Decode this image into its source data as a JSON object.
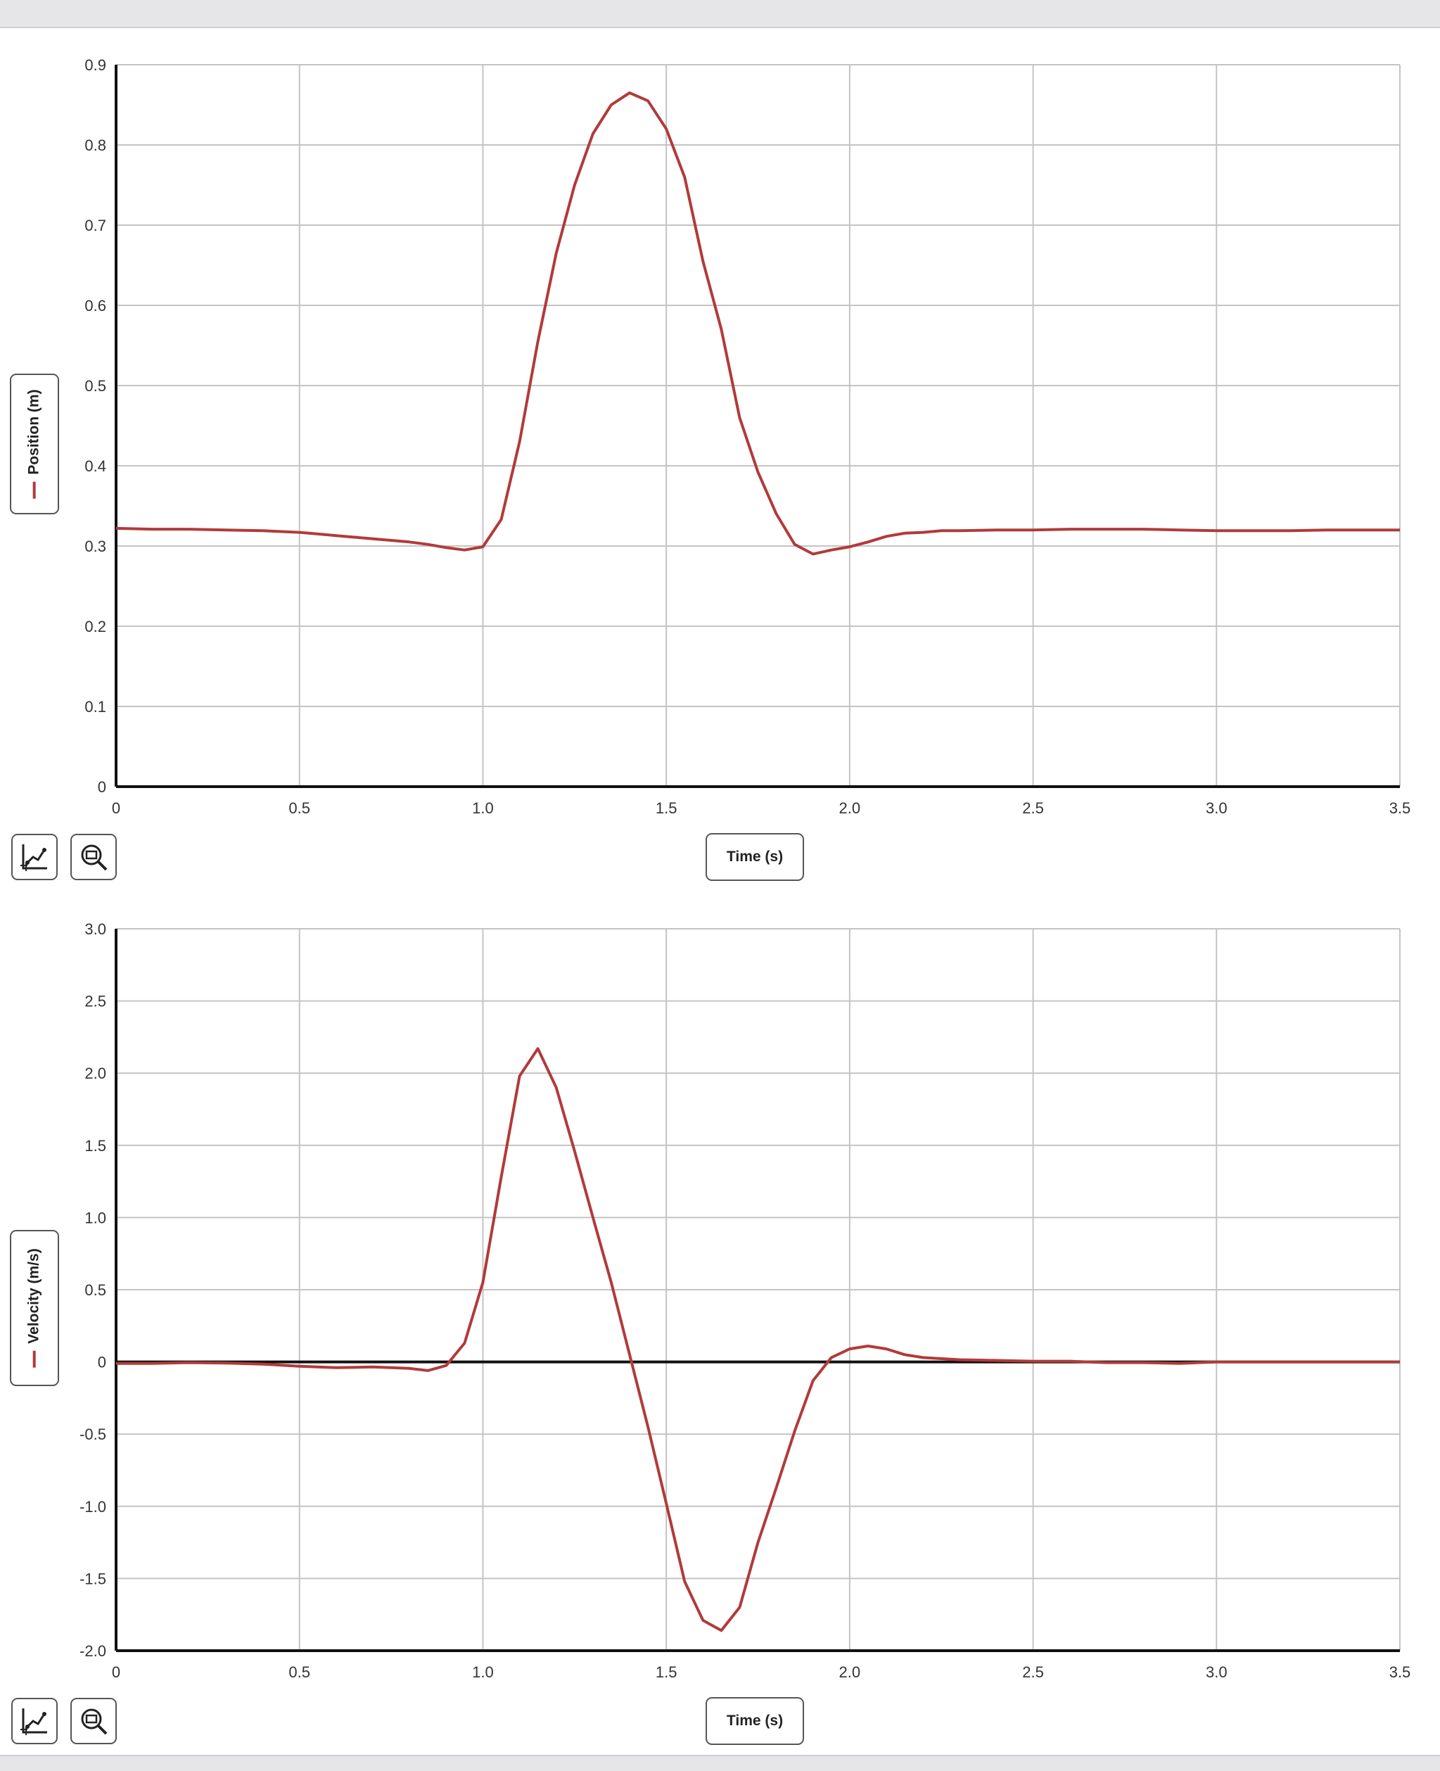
{
  "colors": {
    "series": "#b23a3a",
    "grid": "#c4c4c4",
    "axis": "#111111"
  },
  "charts": [
    {
      "ylabel": "Position (m)",
      "xlabel": "Time (s)"
    },
    {
      "ylabel": "Velocity (m/s)",
      "xlabel": "Time (s)"
    }
  ],
  "tools": {
    "autoscale_icon": "autoscale-icon",
    "zoom_icon": "zoom-icon"
  },
  "chart_data": [
    {
      "type": "line",
      "xlabel": "Time (s)",
      "ylabel": "Position (m)",
      "xlim": [
        0,
        3.5
      ],
      "ylim": [
        0,
        0.9
      ],
      "xticks": [
        "0",
        "0.5",
        "1.0",
        "1.5",
        "2.0",
        "2.5",
        "3.0",
        "3.5"
      ],
      "yticks": [
        "0",
        "0.1",
        "0.2",
        "0.3",
        "0.4",
        "0.5",
        "0.6",
        "0.7",
        "0.8",
        "0.9"
      ],
      "grid": true,
      "series": [
        {
          "x": [
            0,
            0.1,
            0.2,
            0.3,
            0.4,
            0.5,
            0.55,
            0.6,
            0.65,
            0.7,
            0.75,
            0.8,
            0.85,
            0.9,
            0.95,
            1.0,
            1.05,
            1.1,
            1.15,
            1.2,
            1.25,
            1.3,
            1.35,
            1.4,
            1.45,
            1.5,
            1.55,
            1.6,
            1.65,
            1.7,
            1.75,
            1.8,
            1.85,
            1.9,
            1.95,
            2.0,
            2.05,
            2.1,
            2.15,
            2.2,
            2.25,
            2.3,
            2.4,
            2.5,
            2.6,
            2.7,
            2.8,
            2.9,
            3.0,
            3.1,
            3.2,
            3.3,
            3.4,
            3.5
          ],
          "y": [
            0.322,
            0.321,
            0.321,
            0.32,
            0.319,
            0.317,
            0.315,
            0.313,
            0.311,
            0.309,
            0.307,
            0.305,
            0.302,
            0.298,
            0.295,
            0.299,
            0.333,
            0.43,
            0.555,
            0.665,
            0.75,
            0.814,
            0.85,
            0.865,
            0.855,
            0.82,
            0.76,
            0.655,
            0.57,
            0.46,
            0.392,
            0.34,
            0.302,
            0.29,
            0.295,
            0.299,
            0.305,
            0.312,
            0.316,
            0.317,
            0.319,
            0.319,
            0.32,
            0.32,
            0.321,
            0.321,
            0.321,
            0.32,
            0.319,
            0.319,
            0.319,
            0.32,
            0.32,
            0.32
          ]
        }
      ]
    },
    {
      "type": "line",
      "xlabel": "Time (s)",
      "ylabel": "Velocity (m/s)",
      "xlim": [
        0,
        3.5
      ],
      "ylim": [
        -2.0,
        3.0
      ],
      "xticks": [
        "0",
        "0.5",
        "1.0",
        "1.5",
        "2.0",
        "2.5",
        "3.0",
        "3.5"
      ],
      "yticks": [
        "-2.0",
        "-1.5",
        "-1.0",
        "-0.5",
        "0",
        "0.5",
        "1.0",
        "1.5",
        "2.0",
        "2.5",
        "3.0"
      ],
      "grid": true,
      "series": [
        {
          "x": [
            0,
            0.1,
            0.2,
            0.3,
            0.4,
            0.5,
            0.6,
            0.7,
            0.8,
            0.85,
            0.9,
            0.95,
            1.0,
            1.05,
            1.1,
            1.15,
            1.2,
            1.25,
            1.3,
            1.35,
            1.4,
            1.45,
            1.5,
            1.55,
            1.6,
            1.65,
            1.7,
            1.75,
            1.8,
            1.85,
            1.9,
            1.95,
            2.0,
            2.05,
            2.1,
            2.15,
            2.2,
            2.3,
            2.4,
            2.5,
            2.6,
            2.7,
            2.8,
            2.9,
            3.0,
            3.1,
            3.2,
            3.3,
            3.4,
            3.5
          ],
          "y": [
            -0.01,
            -0.01,
            -0.005,
            -0.008,
            -0.015,
            -0.03,
            -0.04,
            -0.035,
            -0.045,
            -0.06,
            -0.025,
            0.13,
            0.55,
            1.28,
            1.98,
            2.17,
            1.9,
            1.46,
            1.0,
            0.55,
            0.05,
            -0.45,
            -0.98,
            -1.52,
            -1.79,
            -1.86,
            -1.7,
            -1.25,
            -0.87,
            -0.48,
            -0.13,
            0.03,
            0.09,
            0.11,
            0.09,
            0.05,
            0.03,
            0.015,
            0.01,
            0.005,
            0.005,
            -0.005,
            -0.005,
            -0.01,
            0.0,
            0.0,
            0.0,
            0.0,
            0.0,
            0.0
          ]
        }
      ]
    }
  ]
}
